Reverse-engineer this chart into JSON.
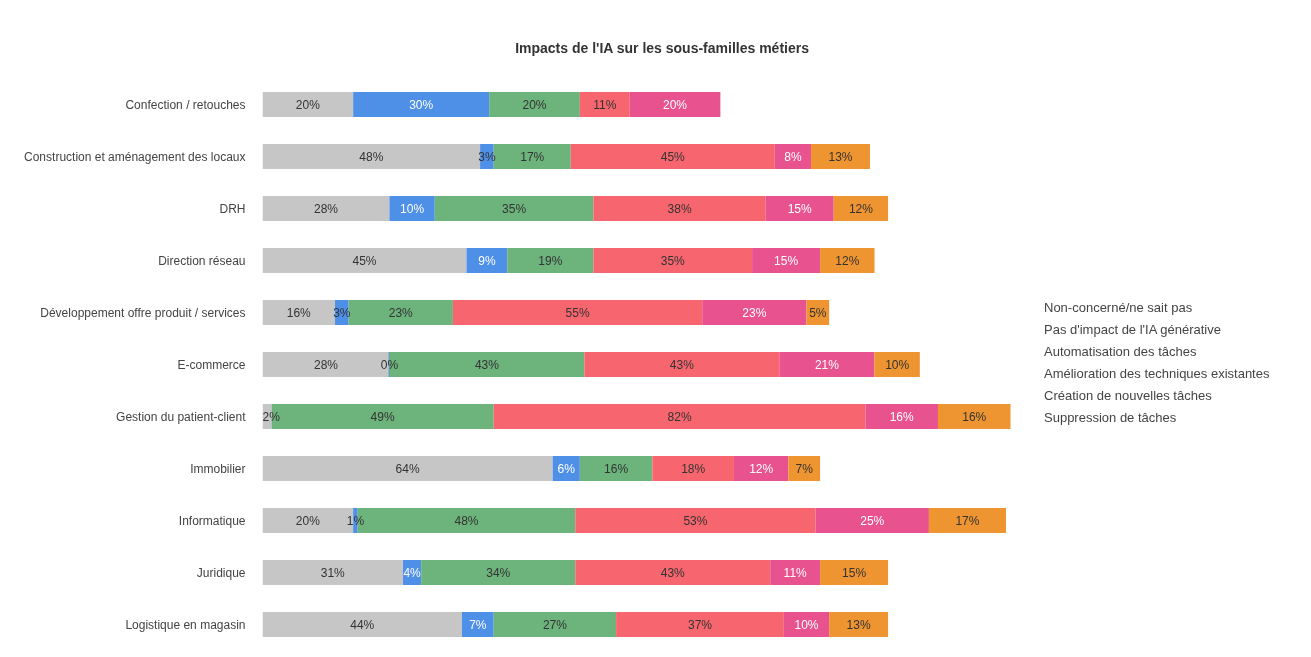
{
  "chart_data": {
    "type": "bar",
    "orientation": "horizontal",
    "stacked": true,
    "title": "Impacts de l'IA sur les sous-familles métiers",
    "categories": [
      "Confection / retouches",
      "Construction et aménagement des locaux",
      "DRH",
      "Direction réseau",
      "Développement offre produit / services",
      "E-commerce",
      "Gestion du patient-client",
      "Immobilier",
      "Informatique",
      "Juridique",
      "Logistique en magasin"
    ],
    "series": [
      {
        "name": "Non-concerné/ne sait pas",
        "color": "#c6c6c6",
        "values": [
          20,
          48,
          28,
          45,
          16,
          28,
          2,
          64,
          20,
          31,
          44
        ],
        "value_labels": [
          "20%",
          "48%",
          "28%",
          "45%",
          "16%",
          "28%",
          "2%",
          "64%",
          "20%",
          "31%",
          "44%"
        ]
      },
      {
        "name": "Pas d'impact de l'IA générative",
        "color": "#4e8fe8",
        "values": [
          30,
          3,
          10,
          9,
          3,
          0,
          null,
          6,
          1,
          4,
          7
        ],
        "value_labels": [
          "30%",
          "3%",
          "10%",
          "9%",
          "3%",
          "0%",
          null,
          "6%",
          "1%",
          "4%",
          "7%"
        ]
      },
      {
        "name": "Automatisation des tâches",
        "color": "#6db37c",
        "values": [
          20,
          17,
          35,
          19,
          23,
          43,
          49,
          16,
          48,
          34,
          27
        ],
        "value_labels": [
          "20%",
          "17%",
          "35%",
          "19%",
          "23%",
          "43%",
          "49%",
          "16%",
          "48%",
          "34%",
          "27%"
        ]
      },
      {
        "name": "Amélioration des techniques existantes",
        "color": "#f7666e",
        "values": [
          11,
          45,
          38,
          35,
          55,
          43,
          82,
          18,
          53,
          43,
          37
        ],
        "value_labels": [
          "11%",
          "45%",
          "38%",
          "35%",
          "55%",
          "43%",
          "82%",
          "18%",
          "53%",
          "43%",
          "37%"
        ]
      },
      {
        "name": "Création de nouvelles tâches",
        "color": "#e8528f",
        "values": [
          20,
          8,
          15,
          15,
          23,
          21,
          16,
          12,
          25,
          11,
          10
        ],
        "value_labels": [
          "20%",
          "8%",
          "15%",
          "15%",
          "23%",
          "21%",
          "16%",
          "12%",
          "25%",
          "11%",
          "10%"
        ]
      },
      {
        "name": "Suppression de tâches",
        "color": "#ee9431",
        "values": [
          null,
          13,
          12,
          12,
          5,
          10,
          16,
          7,
          17,
          15,
          13
        ],
        "value_labels": [
          null,
          "13%",
          "12%",
          "12%",
          "5%",
          "10%",
          "16%",
          "7%",
          "17%",
          "15%",
          "13%"
        ]
      }
    ],
    "legend": "right"
  }
}
